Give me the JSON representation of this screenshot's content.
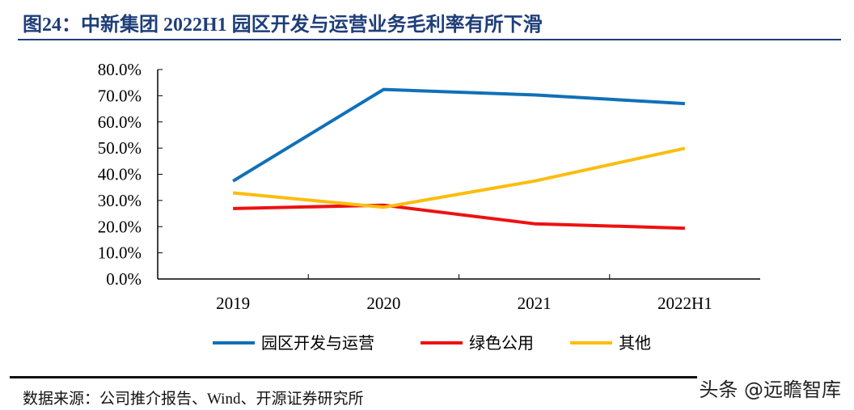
{
  "title": "图24：中新集团 2022H1 园区开发与运营业务毛利率有所下滑",
  "source": "数据来源：公司推介报告、Wind、开源证券研究所",
  "watermark": "头条 @远瞻智库",
  "chart_data": {
    "type": "line",
    "categories": [
      "2019",
      "2020",
      "2021",
      "2022H1"
    ],
    "ylim": [
      0,
      80
    ],
    "yticks": [
      "0.0%",
      "10.0%",
      "20.0%",
      "30.0%",
      "40.0%",
      "50.0%",
      "60.0%",
      "70.0%",
      "80.0%"
    ],
    "grid": false,
    "legend_placement": "bottom",
    "series": [
      {
        "name": "园区开发与运营",
        "color": "#1170b8",
        "values": [
          37.4,
          72.4,
          70.3,
          67.0
        ]
      },
      {
        "name": "绿色公用",
        "color": "#ee1111",
        "values": [
          26.9,
          28.2,
          21.1,
          19.4
        ]
      },
      {
        "name": "其他",
        "color": "#fbbd0f",
        "values": [
          32.9,
          27.4,
          37.4,
          49.9
        ]
      }
    ]
  }
}
